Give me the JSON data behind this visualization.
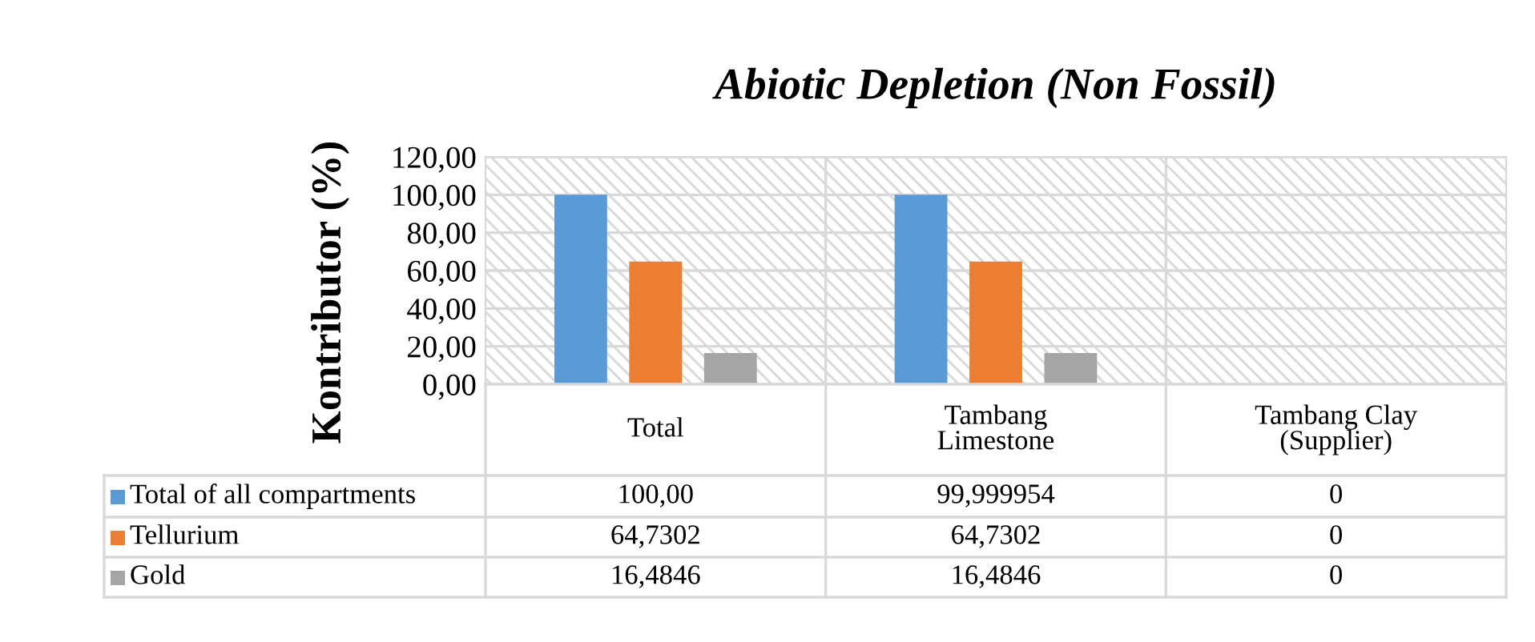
{
  "chart_data": {
    "type": "bar",
    "title": "Abiotic Depletion (Non Fossil)",
    "ylabel": "Kontributor (%)",
    "categories": [
      "Total",
      "Tambang\nLimestone",
      "Tambang Clay\n(Supplier)"
    ],
    "series": [
      {
        "name": "Total of all compartments",
        "color": "#5b9bd5",
        "values": [
          100,
          99.999954,
          0
        ],
        "value_labels": [
          "100,00",
          "99,999954",
          "0"
        ]
      },
      {
        "name": "Tellurium",
        "color": "#ed7d31",
        "values": [
          64.7302,
          64.7302,
          0
        ],
        "value_labels": [
          "64,7302",
          "64,7302",
          "0"
        ]
      },
      {
        "name": "Gold",
        "color": "#a5a5a5",
        "values": [
          16.4846,
          16.4846,
          0
        ],
        "value_labels": [
          "16,4846",
          "16,4846",
          "0"
        ]
      }
    ],
    "ylim": [
      0,
      120
    ],
    "yticks": [
      {
        "value": 0,
        "label": "0,00"
      },
      {
        "value": 20,
        "label": "20,00"
      },
      {
        "value": 40,
        "label": "40,00"
      },
      {
        "value": 60,
        "label": "60,00"
      },
      {
        "value": 80,
        "label": "80,00"
      },
      {
        "value": 100,
        "label": "100,00"
      },
      {
        "value": 120,
        "label": "120,00"
      }
    ],
    "grid": "y",
    "legend": "bottom left"
  }
}
